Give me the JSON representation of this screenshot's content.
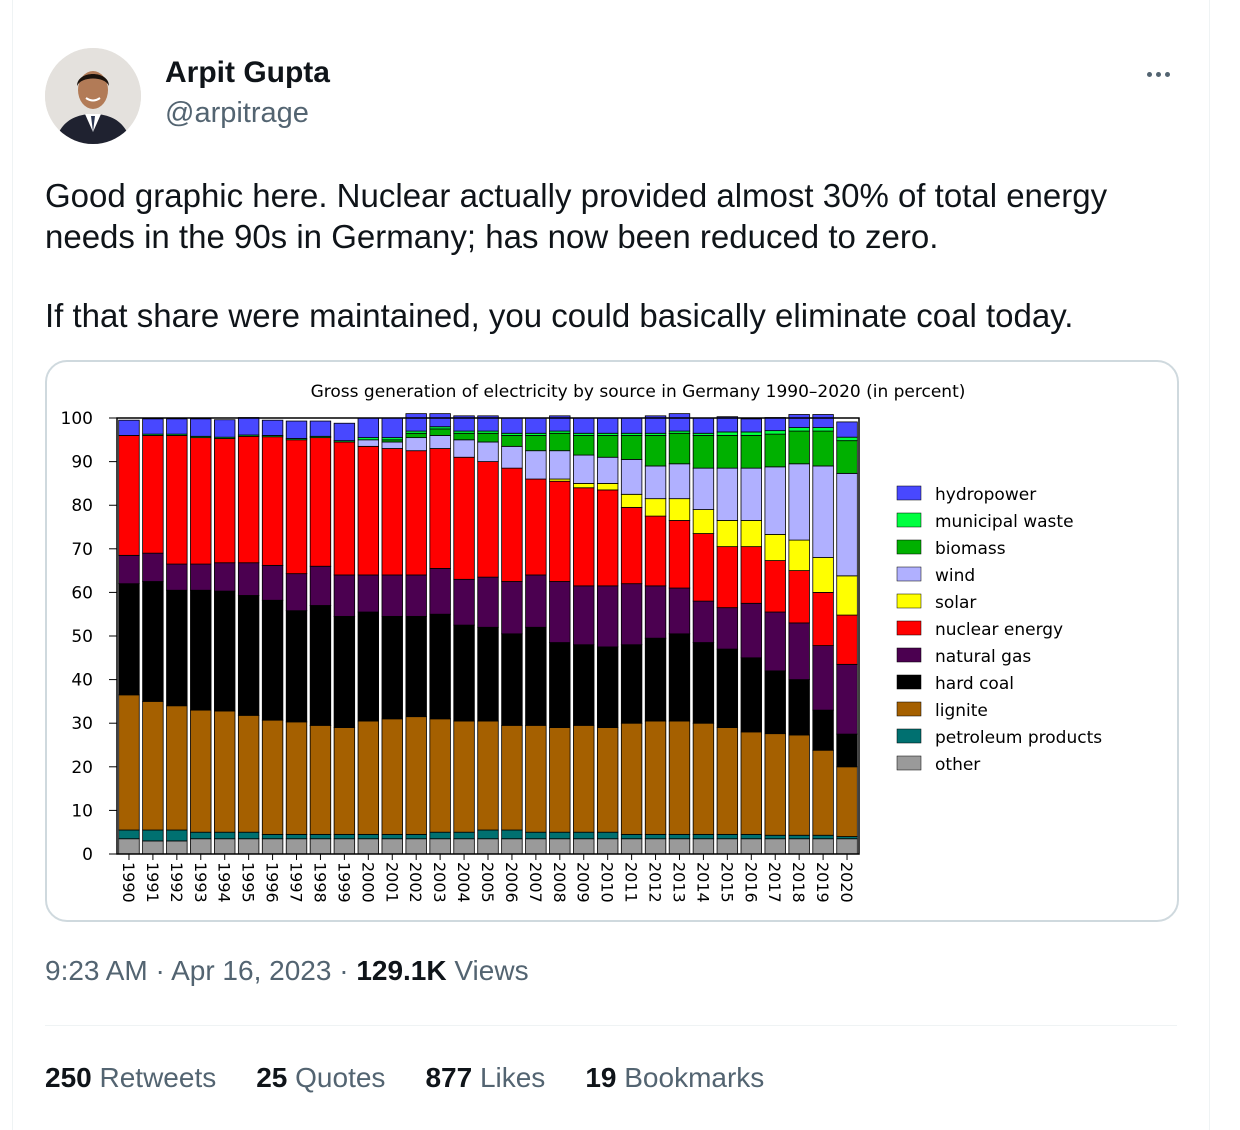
{
  "author": {
    "name": "Arpit Gupta",
    "handle": "@arpitrage"
  },
  "tweet": {
    "paragraphs": [
      "Good graphic here. Nuclear actually provided almost 30% of total energy needs in the 90s in Germany; has now been reduced to zero.",
      "If that share were maintained, you could basically eliminate coal today."
    ]
  },
  "meta": {
    "time": "9:23 AM",
    "separator": "·",
    "date": "Apr 16, 2023",
    "views_count": "129.1K",
    "views_label": "Views"
  },
  "stats": [
    {
      "count": "250",
      "label": "Retweets"
    },
    {
      "count": "25",
      "label": "Quotes"
    },
    {
      "count": "877",
      "label": "Likes"
    },
    {
      "count": "19",
      "label": "Bookmarks"
    }
  ],
  "chart_data": {
    "type": "bar",
    "stacked": true,
    "title": "Gross generation of electricity by source in Germany 1990–2020 (in percent)",
    "xlabel": "",
    "ylabel": "",
    "ylim": [
      0,
      100
    ],
    "yticks": [
      0,
      10,
      20,
      30,
      40,
      50,
      60,
      70,
      80,
      90,
      100
    ],
    "legend_position": "right",
    "categories": [
      "1990",
      "1991",
      "1992",
      "1993",
      "1994",
      "1995",
      "1996",
      "1997",
      "1998",
      "1999",
      "2000",
      "2001",
      "2002",
      "2003",
      "2004",
      "2005",
      "2006",
      "2007",
      "2008",
      "2009",
      "2010",
      "2011",
      "2012",
      "2013",
      "2014",
      "2015",
      "2016",
      "2017",
      "2018",
      "2019",
      "2020"
    ],
    "series": [
      {
        "name": "other",
        "color": "#9a9a9a",
        "values": [
          3.5,
          3.0,
          3.0,
          3.5,
          3.5,
          3.5,
          3.5,
          3.5,
          3.5,
          3.5,
          3.5,
          3.5,
          3.5,
          3.5,
          3.5,
          3.5,
          3.5,
          3.5,
          3.5,
          3.5,
          3.5,
          3.5,
          3.5,
          3.5,
          3.5,
          3.5,
          3.5,
          3.5,
          3.5,
          3.5,
          3.5
        ]
      },
      {
        "name": "petroleum products",
        "color": "#007070",
        "values": [
          2.0,
          2.5,
          2.5,
          1.5,
          1.5,
          1.5,
          1.0,
          1.0,
          1.0,
          1.0,
          1.0,
          1.0,
          1.0,
          1.5,
          1.5,
          2.0,
          2.0,
          1.5,
          1.5,
          1.5,
          1.5,
          1.0,
          1.0,
          1.0,
          1.0,
          1.0,
          1.0,
          0.8,
          0.8,
          0.8,
          0.5
        ]
      },
      {
        "name": "lignite",
        "color": "#a56000",
        "values": [
          31.0,
          29.5,
          28.5,
          28.0,
          27.8,
          26.8,
          26.2,
          25.8,
          25.0,
          24.5,
          26.0,
          26.5,
          27.0,
          26.0,
          25.5,
          25.0,
          24.0,
          24.5,
          24.0,
          24.5,
          24.0,
          25.5,
          26.0,
          26.0,
          25.5,
          24.5,
          23.5,
          23.3,
          23.0,
          19.5,
          16.0
        ]
      },
      {
        "name": "hard coal",
        "color": "#000000",
        "values": [
          25.5,
          27.5,
          26.5,
          27.5,
          27.5,
          27.5,
          27.5,
          25.5,
          27.5,
          25.5,
          25.0,
          23.5,
          23.0,
          24.0,
          22.0,
          21.5,
          21.0,
          22.5,
          19.5,
          18.5,
          18.5,
          18.0,
          19.0,
          20.0,
          18.5,
          18.0,
          17.0,
          14.4,
          12.7,
          9.2,
          7.5
        ]
      },
      {
        "name": "natural gas",
        "color": "#4b0050",
        "values": [
          6.5,
          6.5,
          6.0,
          6.0,
          6.5,
          7.5,
          8.0,
          8.5,
          9.0,
          9.5,
          8.5,
          9.5,
          9.5,
          10.5,
          10.5,
          11.5,
          12.0,
          12.0,
          14.0,
          13.5,
          14.0,
          14.0,
          12.0,
          10.5,
          9.5,
          9.5,
          12.5,
          13.5,
          13.0,
          14.8,
          16.0
        ]
      },
      {
        "name": "nuclear energy",
        "color": "#ff0000",
        "values": [
          27.5,
          27.0,
          29.5,
          29.0,
          28.5,
          29.0,
          29.5,
          30.7,
          29.5,
          30.5,
          29.5,
          29.0,
          28.5,
          27.5,
          28.0,
          26.5,
          26.0,
          22.0,
          23.0,
          22.5,
          22.0,
          17.5,
          16.0,
          15.5,
          15.5,
          14.0,
          13.0,
          11.8,
          12.0,
          12.2,
          11.3
        ]
      },
      {
        "name": "solar",
        "color": "#ffff00",
        "values": [
          0,
          0,
          0,
          0,
          0,
          0,
          0,
          0,
          0,
          0,
          0,
          0,
          0,
          0,
          0,
          0,
          0,
          0,
          0.5,
          1.0,
          1.5,
          3.0,
          4.0,
          5.0,
          5.5,
          6.0,
          6.0,
          6.0,
          7.0,
          8.0,
          9.0
        ]
      },
      {
        "name": "wind",
        "color": "#b0b0ff",
        "values": [
          0,
          0,
          0,
          0,
          0,
          0,
          0,
          0,
          0,
          0,
          1.5,
          1.5,
          3.0,
          3.0,
          4.0,
          4.5,
          5.0,
          6.5,
          6.5,
          6.5,
          6.0,
          8.0,
          7.5,
          8.0,
          9.5,
          12.0,
          12.0,
          15.5,
          17.5,
          21.0,
          23.5
        ]
      },
      {
        "name": "biomass",
        "color": "#00b000",
        "values": [
          0,
          0,
          0,
          0,
          0,
          0,
          0,
          0,
          0,
          0,
          0,
          0.5,
          1.0,
          1.5,
          1.5,
          2.0,
          2.5,
          3.5,
          4.0,
          4.5,
          5.0,
          5.5,
          7.0,
          7.0,
          7.5,
          7.5,
          7.5,
          7.5,
          7.5,
          8.0,
          7.5
        ]
      },
      {
        "name": "municipal waste",
        "color": "#00ff40",
        "values": [
          0,
          0.3,
          0.3,
          0.3,
          0.3,
          0.3,
          0.3,
          0.3,
          0.3,
          0.3,
          0.5,
          0.5,
          0.5,
          0.5,
          0.5,
          0.5,
          0.5,
          0.5,
          0.5,
          0.5,
          0.5,
          0.5,
          0.5,
          0.5,
          0.5,
          0.8,
          0.8,
          0.8,
          0.8,
          0.8,
          0.8
        ]
      },
      {
        "name": "hydropower",
        "color": "#4848ff",
        "values": [
          3.5,
          3.5,
          3.5,
          4.0,
          4.0,
          4.0,
          3.5,
          4.0,
          3.5,
          4.0,
          4.5,
          4.5,
          4.0,
          3.0,
          3.5,
          3.5,
          3.5,
          3.5,
          3.5,
          3.5,
          3.5,
          3.5,
          4.0,
          4.0,
          3.5,
          3.5,
          3.0,
          3.0,
          3.0,
          3.0,
          3.5
        ]
      }
    ]
  }
}
